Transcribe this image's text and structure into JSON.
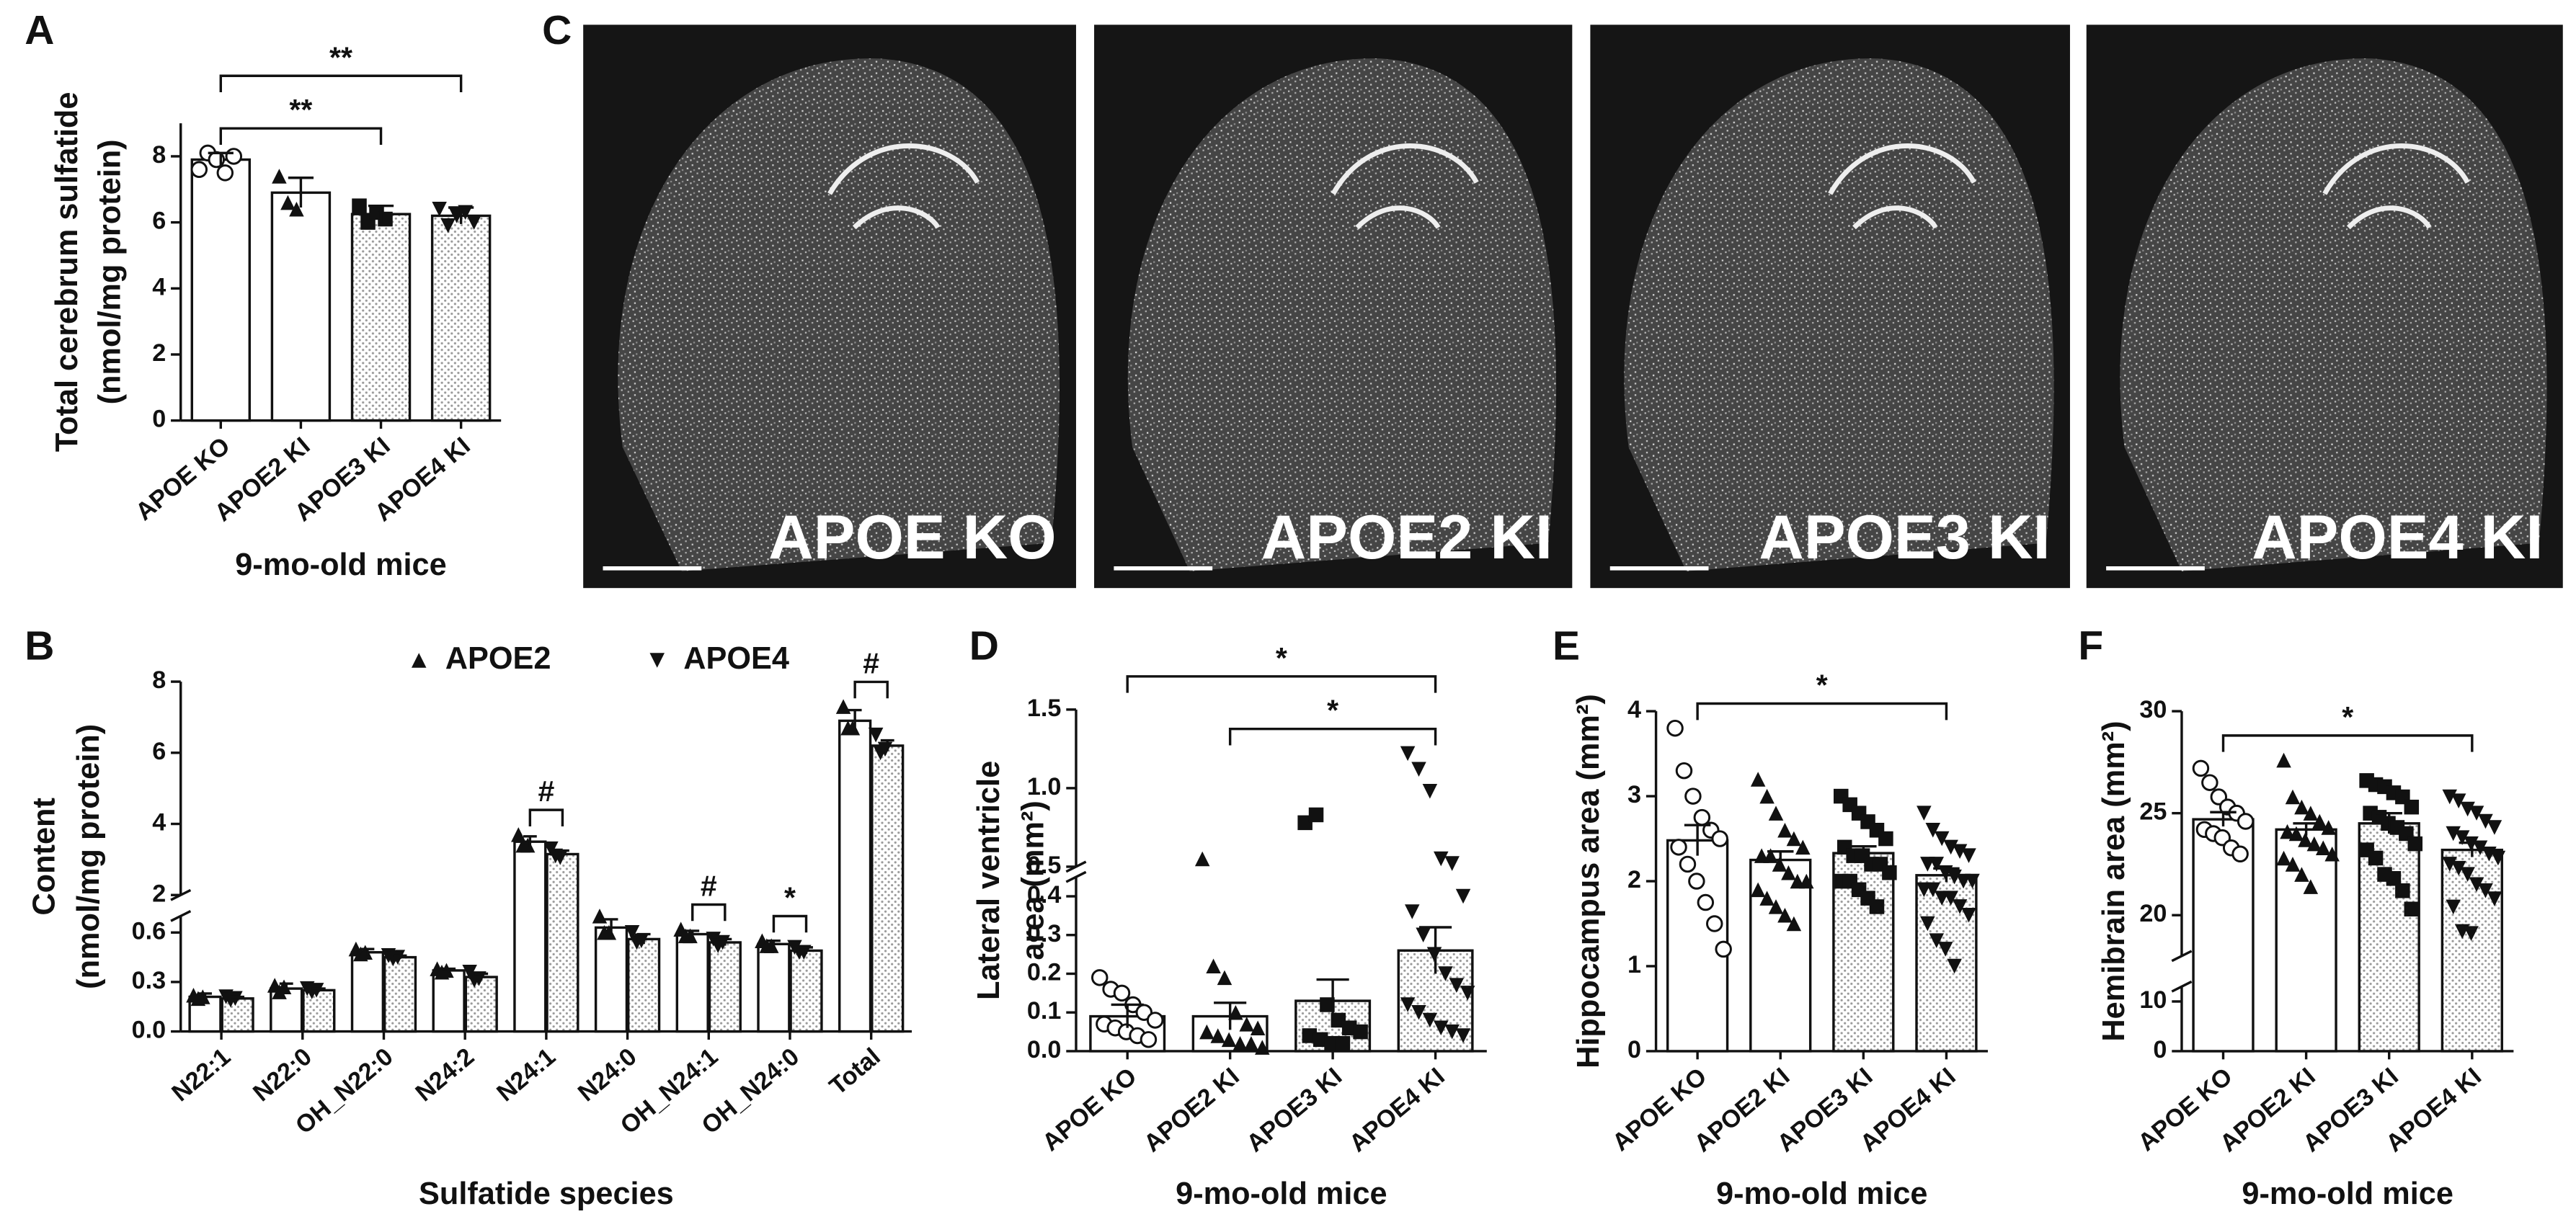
{
  "chart_data": [
    {
      "type": "bar",
      "panel": "A",
      "ylabel": [
        "Total cerebrum sulfatide",
        "(nmol/mg protein)"
      ],
      "xlabel": "9-mo-old mice",
      "categories": [
        "APOE KO",
        "APOE2 KI",
        "APOE3 KI",
        "APOE4 KI"
      ],
      "values": [
        7.9,
        6.9,
        6.25,
        6.2
      ],
      "errors": [
        0.2,
        0.45,
        0.25,
        0.25
      ],
      "points": [
        [
          7.6,
          8.1,
          7.9,
          7.5,
          8.0
        ],
        [
          7.4,
          6.6,
          6.4
        ],
        [
          6.5,
          6.0,
          6.3,
          6.1
        ],
        [
          6.4,
          5.9,
          6.2,
          6.3,
          6.0
        ]
      ],
      "markers": [
        "circle-open",
        "triangle-up",
        "square",
        "triangle-down"
      ],
      "patterns": [
        "open",
        "open",
        "dotted",
        "dotted"
      ],
      "ylim": [
        0,
        9
      ],
      "yticks": [
        0,
        2,
        4,
        6,
        8
      ],
      "annotations": [
        {
          "text": "**",
          "from": "APOE KO",
          "to": "APOE3 KI"
        },
        {
          "text": "**",
          "from": "APOE KO",
          "to": "APOE4 KI"
        }
      ]
    },
    {
      "type": "grouped-bar",
      "panel": "B",
      "ylabel": [
        "Content",
        "(nmol/mg protein)"
      ],
      "xlabel": "Sulfatide species",
      "categories": [
        "N22:1",
        "N22:0",
        "OH_N22:0",
        "N24:2",
        "N24:1",
        "N24:0",
        "OH_N24:1",
        "OH_N24:0",
        "Total"
      ],
      "series": [
        {
          "name": "APOE2",
          "marker": "triangle-up",
          "pattern": "open",
          "values": [
            0.21,
            0.26,
            0.48,
            0.37,
            3.5,
            0.63,
            0.59,
            0.53,
            6.9
          ],
          "errors": [
            0.02,
            0.03,
            0.02,
            0.01,
            0.15,
            0.05,
            0.02,
            0.02,
            0.3
          ],
          "points": [
            [
              0.22,
              0.2,
              0.21
            ],
            [
              0.28,
              0.24,
              0.27
            ],
            [
              0.5,
              0.47,
              0.48
            ],
            [
              0.38,
              0.36,
              0.37
            ],
            [
              3.7,
              3.4,
              3.4
            ],
            [
              0.7,
              0.6,
              0.6
            ],
            [
              0.62,
              0.58,
              0.58
            ],
            [
              0.55,
              0.52,
              0.52
            ],
            [
              7.3,
              6.7,
              6.7
            ]
          ]
        },
        {
          "name": "APOE4",
          "marker": "triangle-down",
          "pattern": "dotted",
          "values": [
            0.2,
            0.25,
            0.45,
            0.33,
            3.15,
            0.56,
            0.54,
            0.49,
            6.2
          ],
          "errors": [
            0.01,
            0.01,
            0.01,
            0.02,
            0.1,
            0.03,
            0.02,
            0.02,
            0.15
          ],
          "points": [
            [
              0.21,
              0.19,
              0.2
            ],
            [
              0.26,
              0.24,
              0.25
            ],
            [
              0.46,
              0.44,
              0.45
            ],
            [
              0.36,
              0.31,
              0.32
            ],
            [
              3.3,
              3.1,
              3.05
            ],
            [
              0.6,
              0.54,
              0.55
            ],
            [
              0.56,
              0.52,
              0.54
            ],
            [
              0.51,
              0.48,
              0.48
            ],
            [
              6.5,
              6.0,
              6.1
            ]
          ]
        }
      ],
      "ylim": [
        0,
        8
      ],
      "ybreak": [
        0.7,
        2
      ],
      "yticks": [
        {
          "value": 0,
          "label": "0.0"
        },
        0.3,
        0.6,
        2,
        4,
        6,
        8
      ],
      "annotations": [
        {
          "text": "#",
          "from": "N24:1",
          "to": "N24:1"
        },
        {
          "text": "#",
          "from": "OH_N24:1",
          "to": "OH_N24:1"
        },
        {
          "text": "*",
          "from": "OH_N24:0",
          "to": "OH_N24:0"
        },
        {
          "text": "#",
          "from": "Total",
          "to": "Total"
        }
      ]
    },
    {
      "type": "bar",
      "panel": "D",
      "ylabel": [
        "Lateral ventricle",
        "area (mm²)"
      ],
      "xlabel": "9-mo-old mice",
      "categories": [
        "APOE KO",
        "APOE2 KI",
        "APOE3 KI",
        "APOE4 KI"
      ],
      "values": [
        0.09,
        0.09,
        0.13,
        0.26
      ],
      "errors": [
        0.03,
        0.035,
        0.055,
        0.06
      ],
      "points": [
        [
          0.19,
          0.16,
          0.15,
          0.12,
          0.1,
          0.08,
          0.07,
          0.06,
          0.05,
          0.04,
          0.03
        ],
        [
          0.55,
          0.22,
          0.19,
          0.1,
          0.07,
          0.06,
          0.05,
          0.04,
          0.03,
          0.02,
          0.02,
          0.01
        ],
        [
          0.78,
          0.83,
          0.12,
          0.08,
          0.06,
          0.05,
          0.04,
          0.03,
          0.02,
          0.02
        ],
        [
          1.22,
          1.12,
          0.98,
          0.55,
          0.52,
          0.4,
          0.36,
          0.3,
          0.25,
          0.2,
          0.17,
          0.15,
          0.12,
          0.1,
          0.08,
          0.06,
          0.05,
          0.04
        ]
      ],
      "markers": [
        "circle-open",
        "triangle-up",
        "square",
        "triangle-down"
      ],
      "patterns": [
        "open",
        "open",
        "dotted",
        "dotted"
      ],
      "ylim": [
        0,
        1.5
      ],
      "ybreak": [
        0.45,
        0.5
      ],
      "yticks": [
        {
          "value": 0,
          "label": "0.0"
        },
        0.1,
        0.2,
        0.3,
        0.4,
        0.5,
        {
          "value": 1,
          "label": "1.0"
        },
        1.5
      ],
      "annotations": [
        {
          "text": "*",
          "from": "APOE2 KI",
          "to": "APOE4 KI"
        },
        {
          "text": "*",
          "from": "APOE KO",
          "to": "APOE4 KI"
        }
      ]
    },
    {
      "type": "bar",
      "panel": "E",
      "ylabel": [
        "Hippocampus area (mm²)"
      ],
      "xlabel": "9-mo-old mice",
      "categories": [
        "APOE KO",
        "APOE2 KI",
        "APOE3 KI",
        "APOE4 KI"
      ],
      "values": [
        2.48,
        2.25,
        2.33,
        2.07
      ],
      "errors": [
        0.18,
        0.1,
        0.08,
        0.08
      ],
      "points": [
        [
          3.8,
          3.3,
          3.0,
          2.75,
          2.6,
          2.5,
          2.4,
          2.2,
          2.0,
          1.75,
          1.5,
          1.2
        ],
        [
          3.2,
          3.0,
          2.8,
          2.6,
          2.5,
          2.4,
          2.3,
          2.3,
          2.2,
          2.1,
          2.0,
          2.0,
          1.9,
          1.8,
          1.7,
          1.6,
          1.5
        ],
        [
          3.0,
          2.9,
          2.8,
          2.7,
          2.6,
          2.5,
          2.4,
          2.3,
          2.3,
          2.2,
          2.2,
          2.1,
          2.0,
          2.0,
          1.9,
          1.8,
          1.7
        ],
        [
          2.8,
          2.6,
          2.5,
          2.4,
          2.35,
          2.3,
          2.2,
          2.2,
          2.1,
          2.05,
          2.0,
          2.0,
          1.9,
          1.9,
          1.8,
          1.8,
          1.7,
          1.6,
          1.5,
          1.3,
          1.2,
          1.0
        ]
      ],
      "markers": [
        "circle-open",
        "triangle-up",
        "square",
        "triangle-down"
      ],
      "patterns": [
        "open",
        "open",
        "dotted",
        "dotted"
      ],
      "ylim": [
        0,
        4
      ],
      "yticks": [
        0,
        1,
        2,
        3,
        4
      ],
      "annotations": [
        {
          "text": "*",
          "from": "APOE KO",
          "to": "APOE4 KI"
        }
      ]
    },
    {
      "type": "bar",
      "panel": "F",
      "ylabel": [
        "Hemibrain area (mm²)"
      ],
      "xlabel": "9-mo-old mice",
      "categories": [
        "APOE KO",
        "APOE2 KI",
        "APOE3 KI",
        "APOE4 KI"
      ],
      "values": [
        24.7,
        24.2,
        24.5,
        23.2
      ],
      "errors": [
        0.35,
        0.3,
        0.5,
        0.35
      ],
      "points": [
        [
          27.2,
          26.5,
          25.8,
          25.3,
          25.0,
          24.6,
          24.2,
          24.0,
          23.8,
          23.3,
          23.0
        ],
        [
          27.6,
          25.8,
          25.3,
          25.0,
          24.6,
          24.3,
          24.1,
          24.0,
          23.7,
          23.5,
          23.3,
          23.0,
          22.8,
          22.5,
          22.0,
          21.4
        ],
        [
          26.6,
          26.4,
          26.3,
          26.0,
          25.8,
          25.3,
          25.0,
          24.8,
          24.5,
          24.3,
          24.0,
          23.5,
          23.2,
          22.8,
          22.0,
          21.8,
          21.2,
          20.3
        ],
        [
          25.8,
          25.6,
          25.2,
          25.0,
          24.6,
          24.3,
          24.0,
          23.8,
          23.5,
          23.3,
          23.0,
          22.8,
          22.5,
          22.3,
          22.0,
          21.5,
          21.2,
          20.8,
          20.4,
          19.2,
          19.1
        ]
      ],
      "markers": [
        "circle-open",
        "triangle-up",
        "square",
        "triangle-down"
      ],
      "patterns": [
        "open",
        "open",
        "dotted",
        "dotted"
      ],
      "ylim": [
        0,
        30
      ],
      "ybreak": [
        13,
        18
      ],
      "yticks": [
        0,
        10,
        20,
        25,
        30
      ],
      "annotations": [
        {
          "text": "*",
          "from": "APOE KO",
          "to": "APOE4 KI"
        }
      ]
    }
  ],
  "images": {
    "panel": "C",
    "labels": [
      "APOE KO",
      "APOE2 KI",
      "APOE3 KI",
      "APOE4 KI"
    ]
  }
}
